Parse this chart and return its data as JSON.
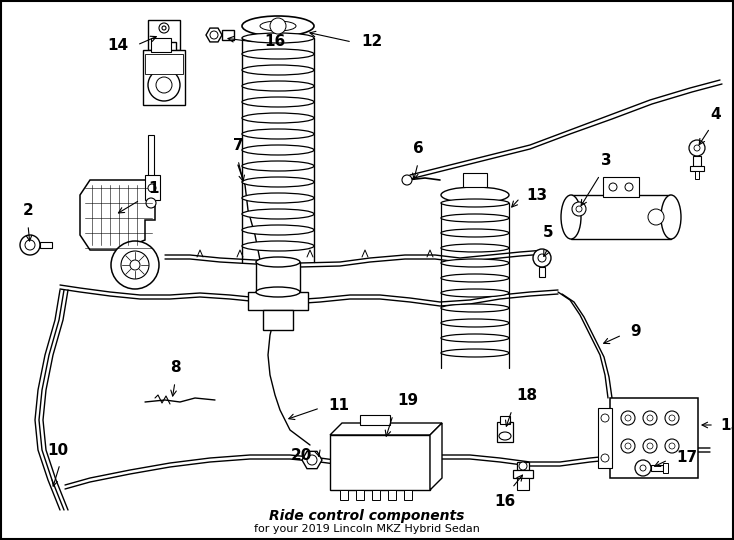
{
  "bg_color": "#ffffff",
  "border_color": "#000000",
  "lc": "#000000",
  "cc": "#000000",
  "title1": "Ride control components",
  "title2": "for your 2019 Lincoln MKZ Hybrid Sedan",
  "title1_fs": 10,
  "title2_fs": 8,
  "label_fs": 11,
  "figw": 7.34,
  "figh": 5.4,
  "dpi": 100
}
